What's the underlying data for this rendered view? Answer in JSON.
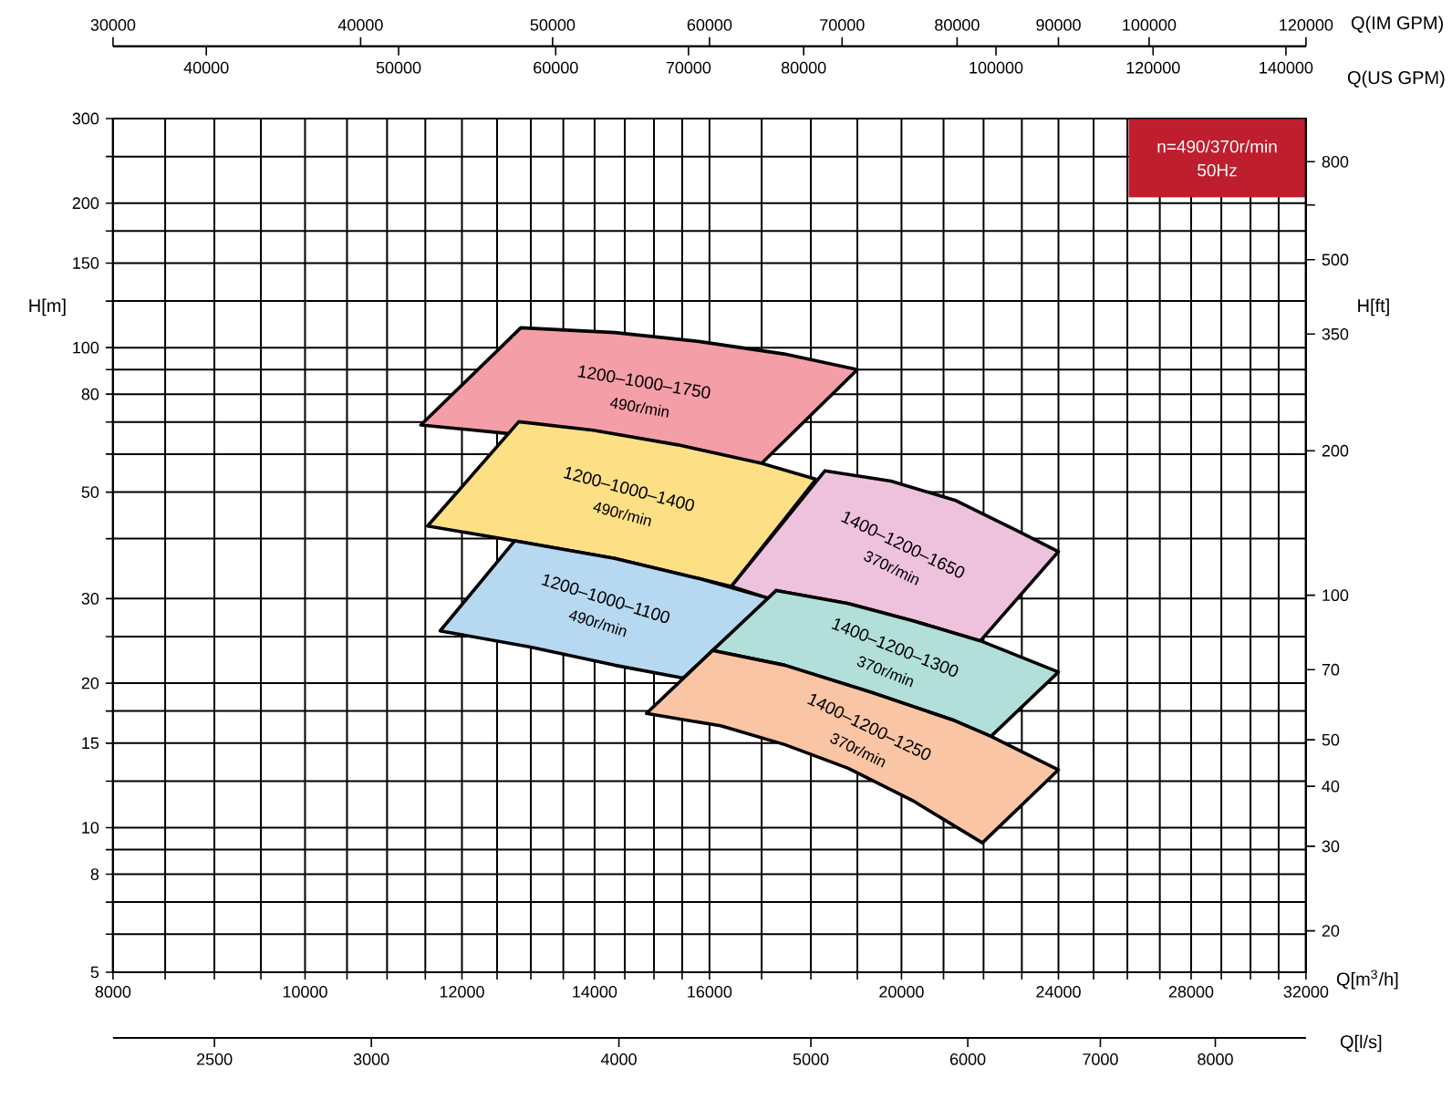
{
  "chart_data": [
    {
      "type": "area",
      "title": "n=490/370r/min",
      "subtitle": "50Hz",
      "xlabel": "Q[m$^{3}$/h]",
      "ylabel": "H[m]",
      "log": "xy",
      "grid": true,
      "xlim": [
        8000,
        32000
      ],
      "xticks": [
        8000,
        {
          "value": 8500,
          "label": null
        },
        {
          "value": 9000,
          "label": null
        },
        {
          "value": 9500,
          "label": null
        },
        10000,
        {
          "value": 10500,
          "label": null
        },
        {
          "value": 11000,
          "label": null
        },
        {
          "value": 11500,
          "label": null
        },
        12000,
        {
          "value": 12500,
          "label": null
        },
        {
          "value": 13000,
          "label": null
        },
        {
          "value": 13500,
          "label": null
        },
        14000,
        {
          "value": 14500,
          "label": null
        },
        {
          "value": 15000,
          "label": null
        },
        {
          "value": 15500,
          "label": null
        },
        16000,
        {
          "value": 17000,
          "label": null
        },
        {
          "value": 18000,
          "label": null
        },
        {
          "value": 19000,
          "label": null
        },
        20000,
        {
          "value": 21000,
          "label": null
        },
        {
          "value": 22000,
          "label": null
        },
        {
          "value": 23000,
          "label": null
        },
        24000,
        {
          "value": 25000,
          "label": null
        },
        {
          "value": 26000,
          "label": null
        },
        {
          "value": 27000,
          "label": null
        },
        28000,
        {
          "value": 29000,
          "label": null
        },
        {
          "value": 30000,
          "label": null
        },
        {
          "value": 31000,
          "label": null
        },
        32000
      ],
      "ylim": [
        5,
        300
      ],
      "yticks": [
        5,
        {
          "value": 6,
          "label": null
        },
        {
          "value": 7,
          "label": null
        },
        8,
        {
          "value": 9,
          "label": null
        },
        10,
        {
          "value": 12.5,
          "label": null
        },
        15,
        {
          "value": 17.5,
          "label": null
        },
        20,
        {
          "value": 25,
          "label": null
        },
        30,
        {
          "value": 40,
          "label": null
        },
        50,
        {
          "value": 60,
          "label": null
        },
        {
          "value": 70,
          "label": null
        },
        80,
        {
          "value": 90,
          "label": null
        },
        100,
        {
          "value": 125,
          "label": null
        },
        150,
        {
          "value": 175,
          "label": null
        },
        200,
        {
          "value": 250,
          "label": null
        },
        300
      ],
      "series": [
        {
          "name": "1200–1000–1750",
          "color": "#f49ea8",
          "x": [
            12850,
            14330,
            15800,
            17450,
            19000,
            17000,
            12630,
            11440
          ],
          "values": [
            110,
            107.5,
            103,
            97,
            90,
            57.4,
            66.3,
            69
          ]
        },
        {
          "name": "1200–1000–1400",
          "color": "#fddf85",
          "x": [
            12820,
            13980,
            15430,
            17000,
            18110,
            16410,
            15820,
            14330,
            12760,
            11530
          ],
          "values": [
            70.1,
            67.3,
            62.7,
            57.4,
            53.2,
            31.8,
            33.0,
            36.4,
            39.6,
            42.5
          ]
        },
        {
          "name": "1400–1200–1650",
          "color": "#eec1dc",
          "x": [
            18300,
            19760,
            21280,
            22910,
            24000,
            21920,
            20250,
            18800,
            17290,
            17160,
            16410
          ],
          "values": [
            55.4,
            52.7,
            48.1,
            41.4,
            37.6,
            24.5,
            27.0,
            29.3,
            31.2,
            30.0,
            31.8
          ]
        },
        {
          "name": "1200–1000–1100",
          "color": "#b7d8f1",
          "x": [
            12760,
            14330,
            15820,
            17160,
            16060,
            15520,
            14330,
            12980,
            11700
          ],
          "values": [
            39.6,
            36.4,
            33.0,
            30.0,
            23.4,
            20.5,
            21.8,
            23.8,
            25.7
          ]
        },
        {
          "name": "1400–1200–1300",
          "color": "#b2dfd9",
          "x": [
            17290,
            18800,
            20250,
            21920,
            24000,
            22190,
            21280,
            19270,
            17460,
            16060
          ],
          "values": [
            31.2,
            29.3,
            27.0,
            24.5,
            21.1,
            15.5,
            16.7,
            19.2,
            21.8,
            23.4
          ]
        },
        {
          "name": "1400–1200–1250",
          "color": "#f9c5a5",
          "x": [
            16060,
            17460,
            19270,
            21280,
            22190,
            24000,
            21970,
            20250,
            18800,
            17460,
            16210,
            14870
          ],
          "values": [
            23.4,
            21.8,
            19.2,
            16.7,
            15.5,
            13.2,
            9.3,
            11.4,
            13.3,
            14.9,
            16.3,
            17.3
          ]
        }
      ],
      "annotations": [
        "490r/min",
        "490r/min",
        "370r/min",
        "490r/min",
        "370r/min",
        "370r/min"
      ]
    },
    {
      "type": "area",
      "xlabel": "Q[l/s]",
      "ylabel": "H[ft]",
      "log": "xy",
      "xlim": [
        2222,
        8889
      ],
      "xticks": [
        2500,
        3000,
        4000,
        5000,
        6000,
        7000,
        8000
      ],
      "ylim": [
        16.4,
        984
      ],
      "yticks": [
        20,
        30,
        40,
        50,
        70,
        100,
        200,
        350,
        500,
        {
          "value": 650,
          "label": null
        },
        800
      ]
    },
    {
      "type": "area",
      "xlabel": "Q(US GPM)",
      "log": "xy",
      "tick_labels": "x",
      "xlim": [
        35900,
        143300
      ],
      "xticks": [
        40000,
        50000,
        60000,
        70000,
        80000,
        100000,
        120000,
        140000
      ],
      "ylim": [
        5,
        300
      ]
    },
    {
      "type": "area",
      "xlabel": "Q(IM GPM)",
      "log": "xy",
      "tick_labels": "x",
      "xlim": [
        30000,
        120000
      ],
      "xticks": [
        30000,
        40000,
        50000,
        60000,
        70000,
        80000,
        90000,
        100000,
        120000
      ],
      "ylim": [
        5,
        300
      ]
    }
  ]
}
